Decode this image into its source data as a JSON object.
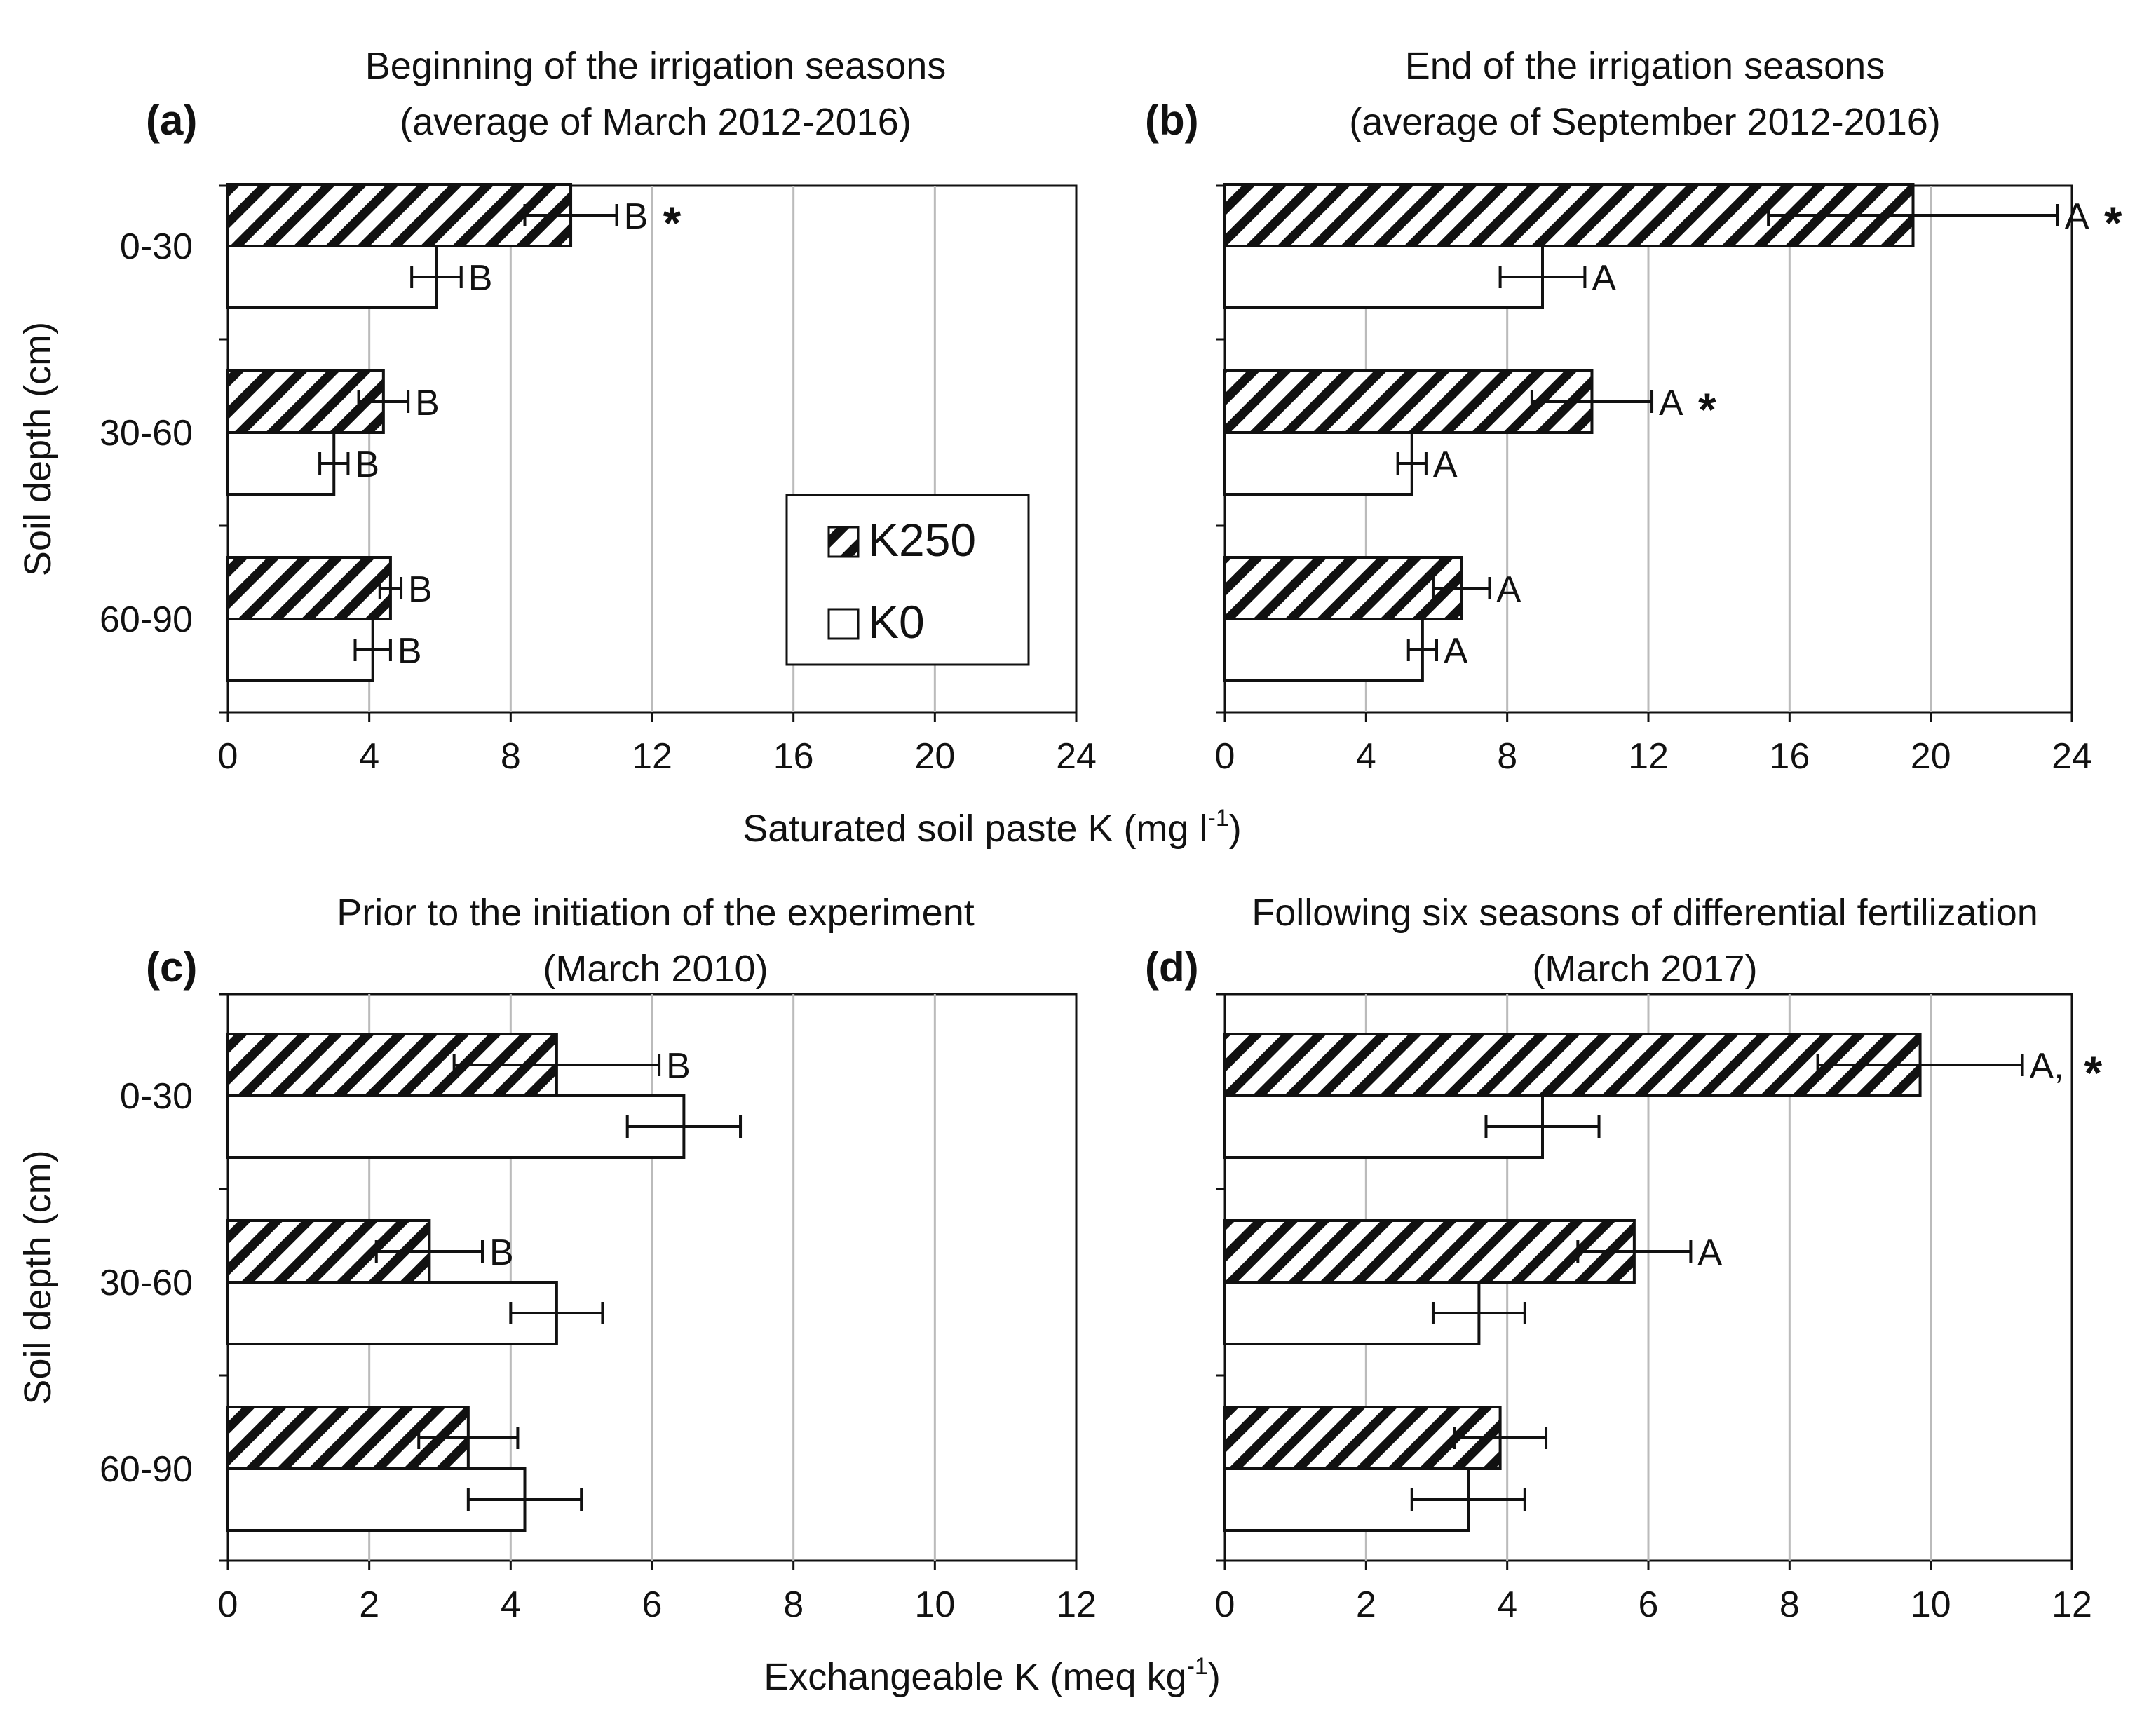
{
  "chart_data": [
    {
      "panel": "(a)",
      "type": "bar",
      "orientation": "horizontal",
      "title": "Beginning of the irrigation seasons",
      "subtitle": "(average of March 2012-2016)",
      "categories": [
        "0-30",
        "30-60",
        "60-90"
      ],
      "series": [
        {
          "name": "K250",
          "values": [
            9.7,
            4.4,
            4.6
          ],
          "errors": [
            1.3,
            0.7,
            0.3
          ],
          "labels": [
            "B",
            "B",
            "B"
          ],
          "stars": [
            true,
            false,
            false
          ]
        },
        {
          "name": "K0",
          "values": [
            5.9,
            3.0,
            4.1
          ],
          "errors": [
            0.7,
            0.4,
            0.5
          ],
          "labels": [
            "B",
            "B",
            "B"
          ],
          "stars": [
            false,
            false,
            false
          ]
        }
      ],
      "xlim": [
        0,
        24
      ],
      "xticks": [
        0,
        4,
        8,
        12,
        16,
        20,
        24
      ],
      "ylabel": "Soil depth (cm)",
      "grid": "vertical",
      "legend": "center-right"
    },
    {
      "panel": "(b)",
      "type": "bar",
      "orientation": "horizontal",
      "title": "End of the irrigation seasons",
      "subtitle": "(average of September 2012-2016)",
      "categories": [
        "0-30",
        "30-60",
        "60-90"
      ],
      "series": [
        {
          "name": "K250",
          "values": [
            19.5,
            10.4,
            6.7
          ],
          "errors": [
            4.1,
            1.7,
            0.8
          ],
          "labels": [
            "A",
            "A",
            "A"
          ],
          "stars": [
            true,
            true,
            false
          ]
        },
        {
          "name": "K0",
          "values": [
            9.0,
            5.3,
            5.6
          ],
          "errors": [
            1.2,
            0.4,
            0.4
          ],
          "labels": [
            "A",
            "A",
            "A"
          ],
          "stars": [
            false,
            false,
            false
          ]
        }
      ],
      "xlim": [
        0,
        24
      ],
      "xticks": [
        0,
        4,
        8,
        12,
        16,
        20,
        24
      ],
      "grid": "vertical"
    },
    {
      "panel": "(c)",
      "type": "bar",
      "orientation": "horizontal",
      "title": "Prior to the initiation of the experiment",
      "subtitle": "(March 2010)",
      "categories": [
        "0-30",
        "30-60",
        "60-90"
      ],
      "series": [
        {
          "name": "K250",
          "values": [
            4.65,
            2.85,
            3.4
          ],
          "errors": [
            1.45,
            0.75,
            0.7
          ],
          "labels": [
            "B",
            "B",
            ""
          ],
          "stars": [
            false,
            false,
            false
          ]
        },
        {
          "name": "K0",
          "values": [
            6.45,
            4.65,
            4.2
          ],
          "errors": [
            0.8,
            0.65,
            0.8
          ],
          "labels": [
            "",
            "",
            ""
          ],
          "stars": [
            false,
            false,
            false
          ]
        }
      ],
      "xlim": [
        0,
        12
      ],
      "xticks": [
        0,
        2,
        4,
        6,
        8,
        10,
        12
      ],
      "ylabel": "Soil depth (cm)",
      "grid": "vertical"
    },
    {
      "panel": "(d)",
      "type": "bar",
      "orientation": "horizontal",
      "title": "Following six seasons of differential fertilization",
      "subtitle": "(March 2017)",
      "categories": [
        "0-30",
        "30-60",
        "60-90"
      ],
      "series": [
        {
          "name": "K250",
          "values": [
            9.85,
            5.8,
            3.9
          ],
          "errors": [
            1.45,
            0.8,
            0.65
          ],
          "labels": [
            "A,",
            "A",
            ""
          ],
          "stars": [
            true,
            false,
            false
          ]
        },
        {
          "name": "K0",
          "values": [
            4.5,
            3.6,
            3.45
          ],
          "errors": [
            0.8,
            0.65,
            0.8
          ],
          "labels": [
            "",
            "",
            ""
          ],
          "stars": [
            false,
            false,
            false
          ]
        }
      ],
      "xlim": [
        0,
        12
      ],
      "xticks": [
        0,
        2,
        4,
        6,
        8,
        10,
        12
      ],
      "grid": "vertical"
    }
  ],
  "axes": {
    "top_xlabel": "Saturated soil paste K (mg l",
    "top_xlabel_sup": "-1",
    "top_xlabel_end": ")",
    "bottom_xlabel": "Exchangeable K (meq kg",
    "bottom_xlabel_sup": "-1",
    "bottom_xlabel_end": ")"
  },
  "legend": {
    "items": [
      {
        "label": "K250",
        "pattern": "hatched"
      },
      {
        "label": "K0",
        "pattern": "open"
      }
    ]
  },
  "star_symbol": "*",
  "colors": {
    "bar_edge": "#111111",
    "hatch": "#111111",
    "grid": "#bbbbbb",
    "background": "#ffffff"
  }
}
